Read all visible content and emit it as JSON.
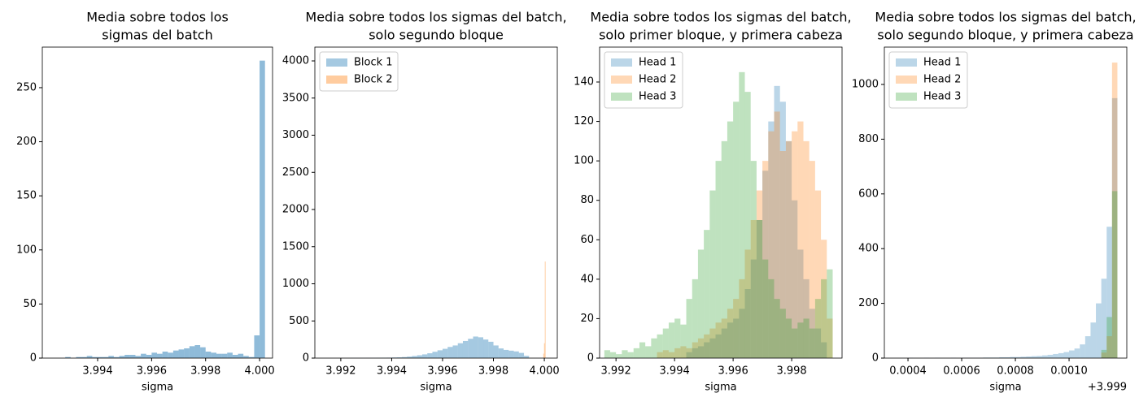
{
  "chart_data": [
    {
      "type": "histogram",
      "title": [
        "Media sobre todos los",
        "sigmas del batch"
      ],
      "xlabel": "sigma",
      "xlim": [
        3.99195,
        4.00048
      ],
      "ylim": [
        0,
        287.5
      ],
      "xticks": [
        3.994,
        3.996,
        3.998,
        {
          "value": 4,
          "label": "4.000"
        }
      ],
      "yticks": [
        0,
        50,
        100,
        150,
        200,
        250
      ],
      "color": "#1f77b4",
      "alpha": 0.5,
      "bins": [
        3.9928,
        3.993,
        3.9932,
        3.9934,
        3.9936,
        3.9938,
        3.994,
        3.9942,
        3.9944,
        3.9946,
        3.9948,
        3.995,
        3.9952,
        3.9954,
        3.9956,
        3.9958,
        3.996,
        3.9962,
        3.9964,
        3.9966,
        3.9968,
        3.997,
        3.9972,
        3.9974,
        3.9976,
        3.9978,
        3.998,
        3.9982,
        3.9984,
        3.9986,
        3.9988,
        3.999,
        3.9992,
        3.9994,
        3.9996,
        3.9998,
        4.0,
        4.0002
      ],
      "values": [
        1,
        0,
        1,
        1,
        2,
        1,
        1,
        1,
        2,
        1,
        2,
        3,
        3,
        2,
        4,
        3,
        5,
        4,
        6,
        5,
        7,
        8,
        9,
        11,
        12,
        10,
        6,
        5,
        4,
        4,
        5,
        3,
        4,
        2,
        1,
        21,
        275
      ]
    },
    {
      "type": "histogram",
      "title": [
        "Media sobre todos los sigmas del batch,",
        "solo segundo bloque"
      ],
      "xlabel": "sigma",
      "xlim": [
        3.99098,
        4.00051
      ],
      "ylim": [
        0,
        4186
      ],
      "xticks": [
        3.992,
        3.994,
        3.996,
        3.998,
        {
          "value": 4,
          "label": "4.000"
        }
      ],
      "yticks": [
        0,
        500,
        1000,
        1500,
        2000,
        2500,
        3000,
        3500,
        4000
      ],
      "alpha": 0.4,
      "legend": "upper left",
      "series": [
        {
          "name": "Block 1",
          "color": "#1f77b4",
          "bins": [
            3.9918,
            3.992,
            3.9922,
            3.9924,
            3.9926,
            3.9928,
            3.993,
            3.9932,
            3.9934,
            3.9936,
            3.9938,
            3.994,
            3.9942,
            3.9944,
            3.9946,
            3.9948,
            3.995,
            3.9952,
            3.9954,
            3.9956,
            3.9958,
            3.996,
            3.9962,
            3.9964,
            3.9966,
            3.9968,
            3.997,
            3.9972,
            3.9974,
            3.9976,
            3.9978,
            3.998,
            3.9982,
            3.9984,
            3.9986,
            3.9988,
            3.999,
            3.9992,
            3.9994
          ],
          "values": [
            1,
            1,
            1,
            2,
            2,
            2,
            3,
            3,
            4,
            5,
            6,
            8,
            10,
            14,
            20,
            28,
            38,
            50,
            65,
            85,
            105,
            125,
            150,
            170,
            200,
            230,
            260,
            290,
            280,
            250,
            220,
            170,
            130,
            110,
            100,
            90,
            70,
            30
          ]
        },
        {
          "name": "Block 2",
          "color": "#ff7f0e",
          "bins": [
            3.99996,
            3.99999,
            4.00002,
            4.00005
          ],
          "values": [
            60,
            200,
            1300
          ]
        }
      ]
    },
    {
      "type": "histogram",
      "title": [
        "Media sobre todos los sigmas del batch,",
        "solo primer bloque, y primera cabeza"
      ],
      "xlabel": "sigma",
      "xlim": [
        3.99144,
        3.99972
      ],
      "ylim": [
        0,
        157.7
      ],
      "xticks": [
        3.992,
        3.994,
        3.996,
        3.998
      ],
      "yticks": [
        0,
        20,
        40,
        60,
        80,
        100,
        120,
        140
      ],
      "alpha": 0.3,
      "legend": "upper left",
      "series": [
        {
          "name": "Head 1",
          "color": "#1f77b4",
          "bins": [
            3.9944,
            3.9946,
            3.9948,
            3.995,
            3.9952,
            3.9954,
            3.9956,
            3.9958,
            3.996,
            3.9962,
            3.9964,
            3.9966,
            3.9968,
            3.997,
            3.9972,
            3.9974,
            3.9976,
            3.9978,
            3.998,
            3.9982,
            3.9984,
            3.9986,
            3.9988,
            3.999,
            3.9992
          ],
          "values": [
            3,
            5,
            6,
            8,
            10,
            12,
            15,
            18,
            20,
            25,
            35,
            50,
            70,
            95,
            120,
            138,
            130,
            110,
            80,
            55,
            40,
            25,
            15,
            8
          ]
        },
        {
          "name": "Head 2",
          "color": "#ff7f0e",
          "bins": [
            3.9934,
            3.9936,
            3.9938,
            3.994,
            3.9942,
            3.9944,
            3.9946,
            3.9948,
            3.995,
            3.9952,
            3.9954,
            3.9956,
            3.9958,
            3.996,
            3.9962,
            3.9964,
            3.9966,
            3.9968,
            3.997,
            3.9972,
            3.9974,
            3.9976,
            3.9978,
            3.998,
            3.9982,
            3.9984,
            3.9986,
            3.9988,
            3.999,
            3.9992,
            3.9994
          ],
          "values": [
            3,
            4,
            3,
            5,
            6,
            5,
            8,
            10,
            12,
            15,
            18,
            20,
            25,
            30,
            40,
            55,
            70,
            85,
            100,
            115,
            125,
            105,
            110,
            115,
            120,
            110,
            100,
            85,
            60,
            20
          ]
        },
        {
          "name": "Head 3",
          "color": "#2ca02c",
          "bins": [
            3.9916,
            3.9918,
            3.992,
            3.9922,
            3.9924,
            3.9926,
            3.9928,
            3.993,
            3.9932,
            3.9934,
            3.9936,
            3.9938,
            3.994,
            3.9942,
            3.9944,
            3.9946,
            3.9948,
            3.995,
            3.9952,
            3.9954,
            3.9956,
            3.9958,
            3.996,
            3.9962,
            3.9964,
            3.9966,
            3.9968,
            3.997,
            3.9972,
            3.9974,
            3.9976,
            3.9978,
            3.998,
            3.9982,
            3.9984,
            3.9986,
            3.9988,
            3.999,
            3.9992,
            3.9994
          ],
          "values": [
            4,
            3,
            2,
            4,
            3,
            5,
            8,
            6,
            10,
            12,
            15,
            18,
            20,
            17,
            30,
            40,
            55,
            65,
            85,
            100,
            110,
            120,
            130,
            145,
            135,
            100,
            70,
            50,
            40,
            30,
            25,
            20,
            15,
            18,
            20,
            15,
            30,
            40,
            45
          ]
        }
      ]
    },
    {
      "type": "histogram",
      "title": [
        "Media sobre todos los sigmas del batch,",
        "solo segundo bloque, y primera cabeza"
      ],
      "xlabel": "sigma",
      "x_offset_label": "+3.999",
      "xlim": [
        0.000312,
        0.001215
      ],
      "ylim": [
        0,
        1136.5
      ],
      "xticks": [
        0.0004,
        0.0006,
        0.0008,
        {
          "value": 0.001,
          "label": "0.0010"
        }
      ],
      "yticks": [
        0,
        200,
        400,
        600,
        800,
        1000
      ],
      "alpha": 0.3,
      "legend": "upper left",
      "series": [
        {
          "name": "Head 1",
          "color": "#1f77b4",
          "bins": [
            0.0004,
            0.00042,
            0.00044,
            0.00046,
            0.00048,
            0.0005,
            0.00052,
            0.00054,
            0.00056,
            0.00058,
            0.0006,
            0.00062,
            0.00064,
            0.00066,
            0.00068,
            0.0007,
            0.00072,
            0.00074,
            0.00076,
            0.00078,
            0.0008,
            0.00082,
            0.00084,
            0.00086,
            0.00088,
            0.0009,
            0.00092,
            0.00094,
            0.00096,
            0.00098,
            0.001,
            0.00102,
            0.00104,
            0.00106,
            0.00108,
            0.0011,
            0.00112,
            0.00114,
            0.00116,
            0.00118
          ],
          "values": [
            1,
            0,
            0,
            1,
            0,
            1,
            0,
            0,
            1,
            0,
            1,
            1,
            1,
            1,
            2,
            2,
            2,
            3,
            3,
            4,
            4,
            5,
            6,
            7,
            8,
            10,
            12,
            15,
            18,
            22,
            28,
            35,
            50,
            80,
            130,
            200,
            290,
            480,
            950
          ]
        },
        {
          "name": "Head 2",
          "color": "#ff7f0e",
          "bins": [
            0.00112,
            0.00114,
            0.00116,
            0.00118
          ],
          "values": [
            20,
            80,
            1080
          ]
        },
        {
          "name": "Head 3",
          "color": "#2ca02c",
          "bins": [
            0.00112,
            0.00114,
            0.00116,
            0.00118
          ],
          "values": [
            30,
            150,
            610
          ]
        }
      ]
    }
  ]
}
